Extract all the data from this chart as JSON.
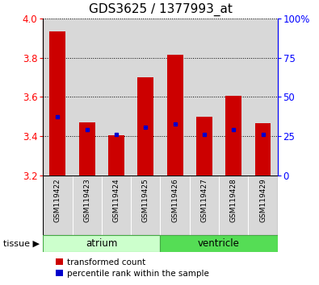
{
  "title": "GDS3625 / 1377993_at",
  "samples": [
    "GSM119422",
    "GSM119423",
    "GSM119424",
    "GSM119425",
    "GSM119426",
    "GSM119427",
    "GSM119428",
    "GSM119429"
  ],
  "bar_tops": [
    3.935,
    3.47,
    3.405,
    3.7,
    3.815,
    3.5,
    3.605,
    3.465
  ],
  "bar_bottom": 3.2,
  "blue_markers": [
    3.5,
    3.435,
    3.41,
    3.445,
    3.46,
    3.408,
    3.435,
    3.408
  ],
  "ylim": [
    3.2,
    4.0
  ],
  "y2lim": [
    0,
    100
  ],
  "y_ticks": [
    3.2,
    3.4,
    3.6,
    3.8,
    4.0
  ],
  "y2_ticks": [
    0,
    25,
    50,
    75,
    100
  ],
  "y2_tick_labels": [
    "0",
    "25",
    "50",
    "75",
    "100%"
  ],
  "bar_color": "#cc0000",
  "marker_color": "#0000cc",
  "bar_width": 0.55,
  "atrium_color": "#ccffcc",
  "ventricle_color": "#55dd55",
  "sample_bg_color": "#d8d8d8",
  "legend_items": [
    {
      "color": "#cc0000",
      "label": "transformed count"
    },
    {
      "color": "#0000cc",
      "label": "percentile rank within the sample"
    }
  ],
  "title_fontsize": 11,
  "tick_fontsize": 8.5,
  "sample_fontsize": 6.5,
  "legend_fontsize": 7.5,
  "tissue_fontsize": 8.5
}
